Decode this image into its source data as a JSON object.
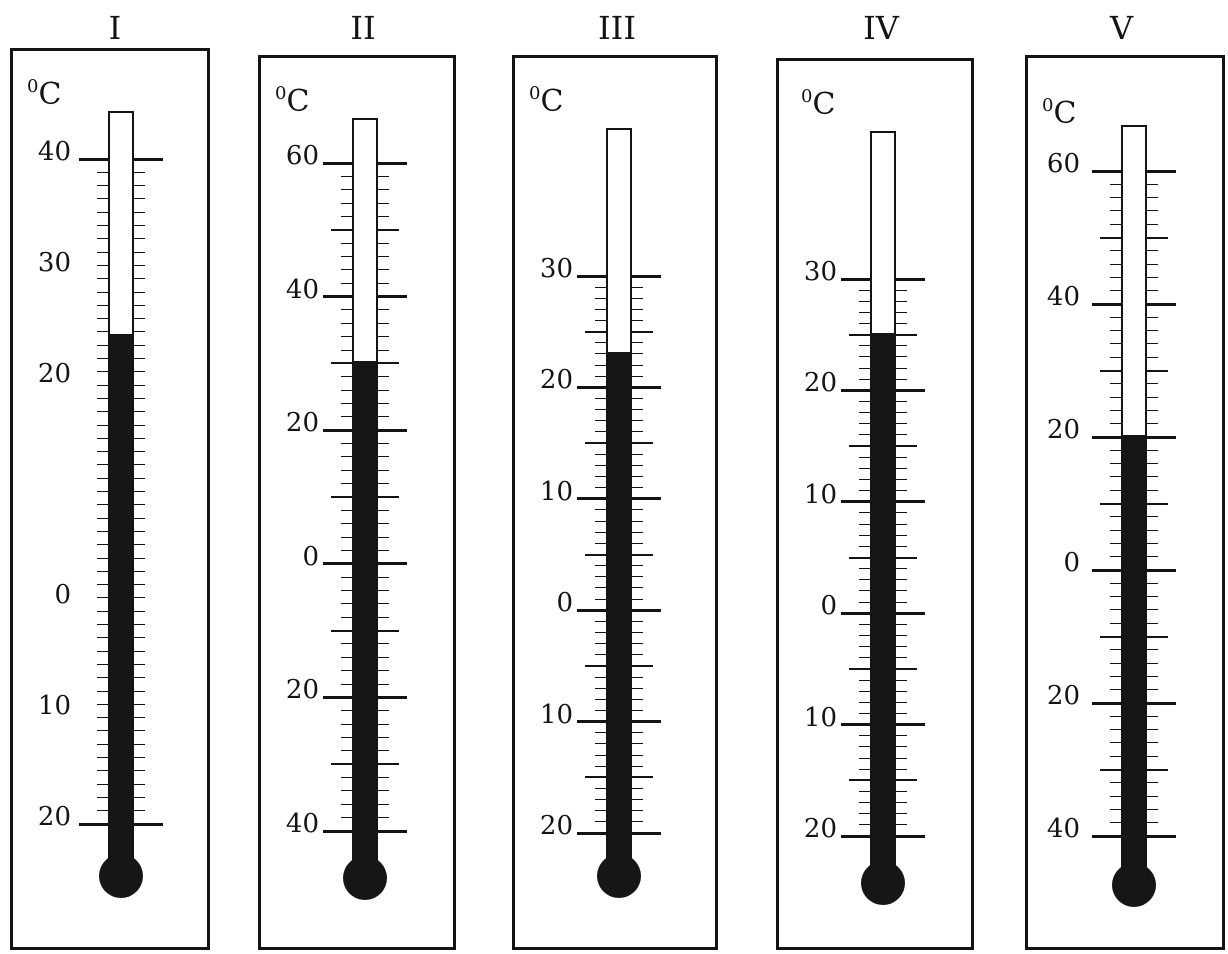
{
  "thermometers": [
    {
      "id": "I",
      "title": "I",
      "unit_prefix": "0",
      "unit": "C",
      "scale_min": -20,
      "scale_max": 40,
      "reading": 24,
      "labels": [
        {
          "value": 40,
          "text": "40"
        },
        {
          "value": 30,
          "text": "30"
        },
        {
          "value": 20,
          "text": "20"
        },
        {
          "value": 0,
          "text": "0"
        },
        {
          "value": -10,
          "text": "10"
        },
        {
          "value": -20,
          "text": "20"
        }
      ]
    },
    {
      "id": "II",
      "title": "II",
      "unit_prefix": "0",
      "unit": "C",
      "scale_min": -40,
      "scale_max": 60,
      "reading": 30,
      "labels": [
        {
          "value": 60,
          "text": "60"
        },
        {
          "value": 40,
          "text": "40"
        },
        {
          "value": 20,
          "text": "20"
        },
        {
          "value": 0,
          "text": "0"
        },
        {
          "value": -20,
          "text": "20"
        },
        {
          "value": -40,
          "text": "40"
        }
      ]
    },
    {
      "id": "III",
      "title": "III",
      "unit_prefix": "0",
      "unit": "C",
      "scale_min": -20,
      "scale_max": 30,
      "reading": 23,
      "labels": [
        {
          "value": 30,
          "text": "30"
        },
        {
          "value": 20,
          "text": "20"
        },
        {
          "value": 10,
          "text": "10"
        },
        {
          "value": 0,
          "text": "0"
        },
        {
          "value": -10,
          "text": "10"
        },
        {
          "value": -20,
          "text": "20"
        }
      ]
    },
    {
      "id": "IV",
      "title": "IV",
      "unit_prefix": "0",
      "unit": "C",
      "scale_min": -20,
      "scale_max": 30,
      "reading": 25,
      "labels": [
        {
          "value": 30,
          "text": "30"
        },
        {
          "value": 20,
          "text": "20"
        },
        {
          "value": 10,
          "text": "10"
        },
        {
          "value": 0,
          "text": "0"
        },
        {
          "value": -10,
          "text": "10"
        },
        {
          "value": -20,
          "text": "20"
        }
      ]
    },
    {
      "id": "V",
      "title": "V",
      "unit_prefix": "0",
      "unit": "C",
      "scale_min": -40,
      "scale_max": 60,
      "reading": 20,
      "labels": [
        {
          "value": 60,
          "text": "60"
        },
        {
          "value": 40,
          "text": "40"
        },
        {
          "value": 20,
          "text": "20"
        },
        {
          "value": 0,
          "text": "0"
        },
        {
          "value": -20,
          "text": "20"
        },
        {
          "value": -40,
          "text": "40"
        }
      ]
    }
  ]
}
